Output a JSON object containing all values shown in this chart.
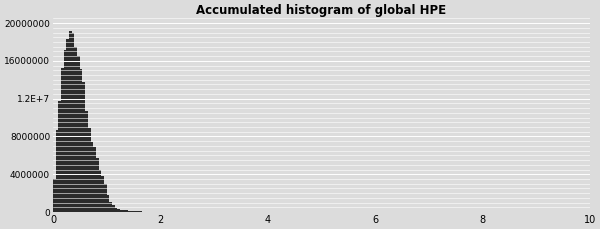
{
  "title": "Accumulated histogram of global HPE",
  "bar_color": "#2b2b2b",
  "background_color": "#dcdcdc",
  "fig_background": "#dcdcdc",
  "xlim": [
    0,
    10
  ],
  "ylim": [
    0,
    20500000
  ],
  "yticks": [
    0,
    4000000,
    8000000,
    12000000,
    16000000,
    20000000
  ],
  "xticks": [
    0,
    2,
    4,
    6,
    8,
    10
  ],
  "bin_width": 0.05,
  "bar_heights": [
    3500000,
    8700000,
    11700000,
    15200000,
    17200000,
    18300000,
    19200000,
    19000000,
    17500000,
    16500000,
    15100000,
    13800000,
    10700000,
    8900000,
    7400000,
    6900000,
    5700000,
    4500000,
    3800000,
    3000000,
    1800000,
    1100000,
    700000,
    480000,
    350000,
    270000,
    210000,
    170000,
    140000,
    115000,
    95000,
    80000,
    68000,
    58000,
    50000,
    44000,
    39000,
    35000,
    31000,
    28000,
    26000,
    23000,
    21000,
    19000,
    17500,
    16000,
    14800,
    13700,
    12700,
    11800,
    11000,
    10300,
    9700,
    9100,
    8600,
    8100,
    7700,
    7200,
    6800,
    6400,
    6100,
    5800,
    5500,
    5200,
    4900,
    4700,
    4400,
    4200,
    4000,
    3800,
    3600,
    3400,
    3200,
    3000,
    2900,
    2700,
    2600,
    2400,
    2300,
    2200,
    2100,
    2000,
    1900,
    1800,
    1700,
    1600,
    1500,
    1450,
    1400,
    1350,
    1300,
    1250,
    1200,
    1150,
    1100,
    1050,
    1000,
    960,
    920,
    880,
    840,
    810,
    780,
    750,
    720,
    700,
    670,
    650,
    620,
    600,
    580,
    560,
    540,
    520,
    510,
    490,
    475,
    460,
    445,
    430,
    415,
    400,
    390,
    375,
    365,
    350,
    340,
    330,
    320,
    310,
    300,
    293,
    285,
    278,
    270,
    263,
    256,
    250,
    243,
    237,
    231,
    225,
    220,
    214,
    209,
    204,
    199,
    194,
    190,
    185,
    181,
    177,
    173,
    169,
    165,
    162,
    158,
    155,
    151,
    148,
    145,
    142,
    139,
    136,
    133,
    130,
    128,
    125,
    122,
    120,
    117,
    115,
    112,
    110,
    108,
    106,
    103,
    101,
    99,
    97,
    95,
    93,
    91,
    90,
    88,
    86,
    84,
    83,
    81,
    79,
    78,
    76,
    75,
    73,
    72
  ]
}
